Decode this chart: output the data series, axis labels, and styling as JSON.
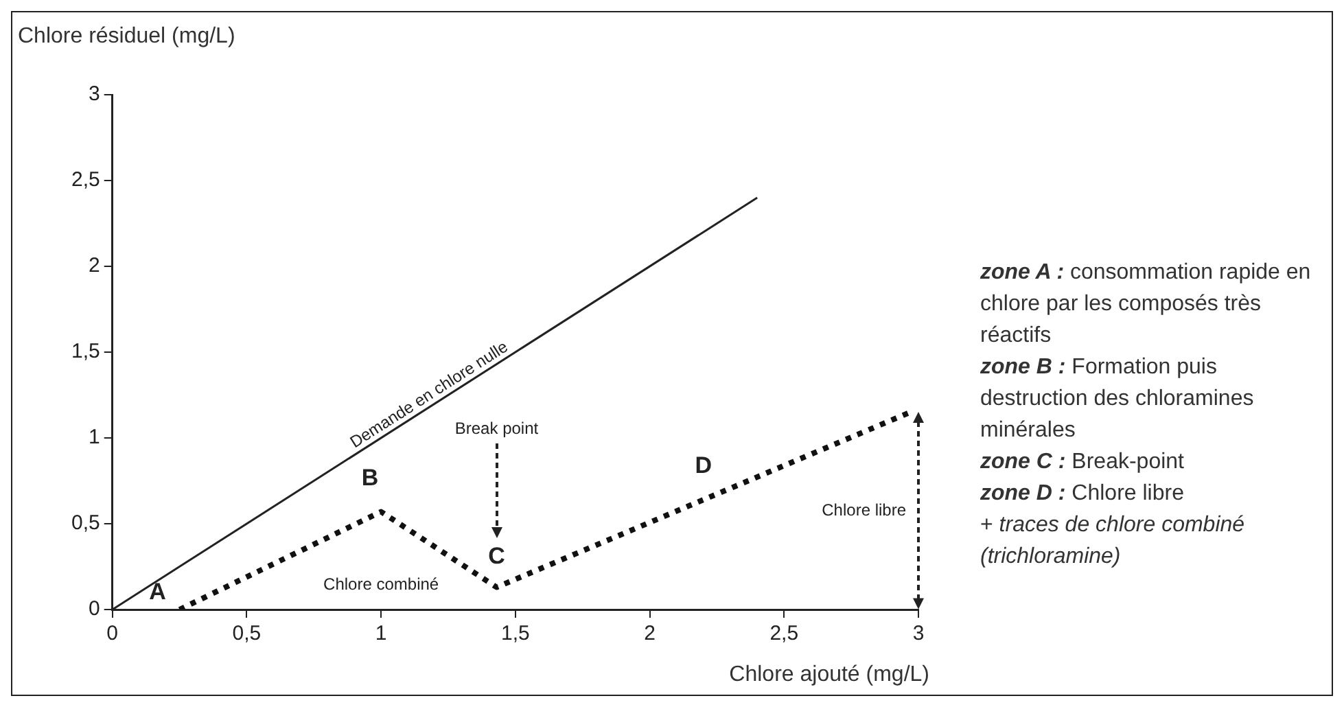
{
  "chart_data": {
    "type": "line",
    "xlabel": "Chlore ajouté (mg/L)",
    "ylabel": "Chlore résiduel (mg/L)",
    "xlim": [
      0,
      3
    ],
    "ylim": [
      0,
      3
    ],
    "xticks": [
      0,
      {
        "value": 0.5,
        "label": "0,5"
      },
      1,
      {
        "value": 1.5,
        "label": "1,5"
      },
      2,
      {
        "value": 2.5,
        "label": "2,5"
      },
      3
    ],
    "yticks": [
      0,
      {
        "value": 0.5,
        "label": "0,5"
      },
      1,
      {
        "value": 1.5,
        "label": "1,5"
      },
      2,
      {
        "value": 2.5,
        "label": "2,5"
      },
      3
    ],
    "grid": false,
    "legend": false,
    "marker": "none",
    "series": [
      {
        "name": "Demande en chlore nulle",
        "color": "#222222",
        "line_style": "solid",
        "x": [
          0,
          2.4
        ],
        "values": [
          0,
          2.4
        ]
      },
      {
        "color": "#111111",
        "line_style": "dotted",
        "x": [
          0.25,
          1,
          1.43,
          2.2,
          2.97
        ],
        "values": [
          0,
          0.57,
          0.13,
          0.64,
          1.15
        ]
      }
    ],
    "annotations": [
      {
        "text": "A",
        "x": 0.25,
        "y": 0
      },
      {
        "text": "B",
        "x": 1,
        "y": 0.57
      },
      {
        "text": "C",
        "x": 1.43,
        "y": 0.13
      },
      {
        "text": "D",
        "x": 2.2,
        "y": 0.64
      },
      "Chlore combiné",
      "Break point",
      "Chlore libre",
      "zone A : consommation rapide en chlore par les composés très réactifs",
      "zone B : Formation puis destruction des chloramines minérales",
      "zone C : Break-point",
      "zone D : Chlore libre",
      "+ traces de chlore combiné (trichloramine)"
    ]
  }
}
